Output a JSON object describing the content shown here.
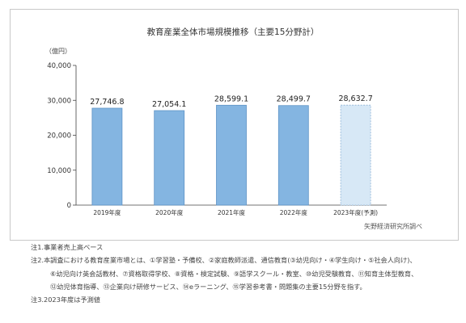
{
  "chart_data": {
    "type": "bar",
    "title": "教育産業全体市場規模推移（主要15分野計）",
    "unit_label": "（億円）",
    "categories": [
      "2019年度",
      "2020年度",
      "2021年度",
      "2022年度",
      "2023年度(予測)"
    ],
    "values": [
      27746.8,
      27054.1,
      28599.1,
      28499.7,
      28632.7
    ],
    "value_labels": [
      "27,746.8",
      "27,054.1",
      "28,599.1",
      "28,499.7",
      "28,632.7"
    ],
    "forecast": [
      false,
      false,
      false,
      false,
      true
    ],
    "ylim": [
      0,
      40000
    ],
    "yticks": [
      0,
      10000,
      20000,
      30000,
      40000
    ],
    "ytick_labels": [
      "0",
      "10,000",
      "20,000",
      "30,000",
      "40,000"
    ],
    "grid": false,
    "colors": {
      "actual": "#84b5e1",
      "forecast": "#d7e8f6"
    },
    "source": "矢野経済研究所調べ"
  },
  "notes": [
    "注1.事業者売上高ベース",
    "注2.本調査における教育産業市場とは、①学習塾・予備校、②家庭教師派遣、通信教育(③幼児向け・④学生向け・⑤社会人向け)、",
    "⑥幼児向け英会話教材、⑦資格取得学校、⑧資格・検定試験、⑨語学スクール・教室、⑩幼児受験教育、⑪知育主体型教育、",
    "⑫幼児体育指導、⑬企業向け研修サービス、⑭eラーニング、⑮学習参考書・問題集の主要15分野を指す。",
    "注3.2023年度は予測値"
  ]
}
